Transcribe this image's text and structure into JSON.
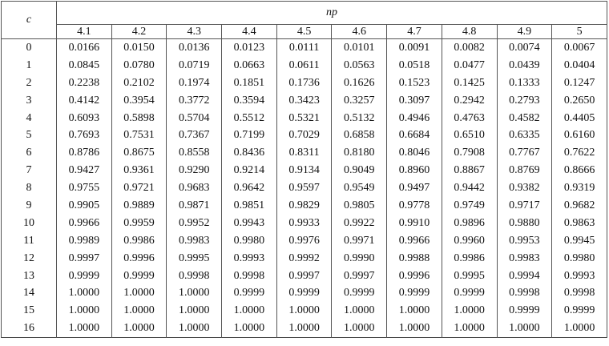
{
  "header": {
    "row_label": "c",
    "column_group": "np",
    "columns": [
      "4.1",
      "4.2",
      "4.3",
      "4.4",
      "4.5",
      "4.6",
      "4.7",
      "4.8",
      "4.9",
      "5"
    ]
  },
  "table": {
    "rows": [
      {
        "c": "0",
        "values": [
          "0.0166",
          "0.0150",
          "0.0136",
          "0.0123",
          "0.0111",
          "0.0101",
          "0.0091",
          "0.0082",
          "0.0074",
          "0.0067"
        ]
      },
      {
        "c": "1",
        "values": [
          "0.0845",
          "0.0780",
          "0.0719",
          "0.0663",
          "0.0611",
          "0.0563",
          "0.0518",
          "0.0477",
          "0.0439",
          "0.0404"
        ]
      },
      {
        "c": "2",
        "values": [
          "0.2238",
          "0.2102",
          "0.1974",
          "0.1851",
          "0.1736",
          "0.1626",
          "0.1523",
          "0.1425",
          "0.1333",
          "0.1247"
        ]
      },
      {
        "c": "3",
        "values": [
          "0.4142",
          "0.3954",
          "0.3772",
          "0.3594",
          "0.3423",
          "0.3257",
          "0.3097",
          "0.2942",
          "0.2793",
          "0.2650"
        ]
      },
      {
        "c": "4",
        "values": [
          "0.6093",
          "0.5898",
          "0.5704",
          "0.5512",
          "0.5321",
          "0.5132",
          "0.4946",
          "0.4763",
          "0.4582",
          "0.4405"
        ]
      },
      {
        "c": "5",
        "values": [
          "0.7693",
          "0.7531",
          "0.7367",
          "0.7199",
          "0.7029",
          "0.6858",
          "0.6684",
          "0.6510",
          "0.6335",
          "0.6160"
        ]
      },
      {
        "c": "6",
        "values": [
          "0.8786",
          "0.8675",
          "0.8558",
          "0.8436",
          "0.8311",
          "0.8180",
          "0.8046",
          "0.7908",
          "0.7767",
          "0.7622"
        ]
      },
      {
        "c": "7",
        "values": [
          "0.9427",
          "0.9361",
          "0.9290",
          "0.9214",
          "0.9134",
          "0.9049",
          "0.8960",
          "0.8867",
          "0.8769",
          "0.8666"
        ]
      },
      {
        "c": "8",
        "values": [
          "0.9755",
          "0.9721",
          "0.9683",
          "0.9642",
          "0.9597",
          "0.9549",
          "0.9497",
          "0.9442",
          "0.9382",
          "0.9319"
        ]
      },
      {
        "c": "9",
        "values": [
          "0.9905",
          "0.9889",
          "0.9871",
          "0.9851",
          "0.9829",
          "0.9805",
          "0.9778",
          "0.9749",
          "0.9717",
          "0.9682"
        ]
      },
      {
        "c": "10",
        "values": [
          "0.9966",
          "0.9959",
          "0.9952",
          "0.9943",
          "0.9933",
          "0.9922",
          "0.9910",
          "0.9896",
          "0.9880",
          "0.9863"
        ]
      },
      {
        "c": "11",
        "values": [
          "0.9989",
          "0.9986",
          "0.9983",
          "0.9980",
          "0.9976",
          "0.9971",
          "0.9966",
          "0.9960",
          "0.9953",
          "0.9945"
        ]
      },
      {
        "c": "12",
        "values": [
          "0.9997",
          "0.9996",
          "0.9995",
          "0.9993",
          "0.9992",
          "0.9990",
          "0.9988",
          "0.9986",
          "0.9983",
          "0.9980"
        ]
      },
      {
        "c": "13",
        "values": [
          "0.9999",
          "0.9999",
          "0.9998",
          "0.9998",
          "0.9997",
          "0.9997",
          "0.9996",
          "0.9995",
          "0.9994",
          "0.9993"
        ]
      },
      {
        "c": "14",
        "values": [
          "1.0000",
          "1.0000",
          "1.0000",
          "0.9999",
          "0.9999",
          "0.9999",
          "0.9999",
          "0.9999",
          "0.9998",
          "0.9998"
        ]
      },
      {
        "c": "15",
        "values": [
          "1.0000",
          "1.0000",
          "1.0000",
          "1.0000",
          "1.0000",
          "1.0000",
          "1.0000",
          "1.0000",
          "0.9999",
          "0.9999"
        ]
      },
      {
        "c": "16",
        "values": [
          "1.0000",
          "1.0000",
          "1.0000",
          "1.0000",
          "1.0000",
          "1.0000",
          "1.0000",
          "1.0000",
          "1.0000",
          "1.0000"
        ]
      }
    ]
  }
}
